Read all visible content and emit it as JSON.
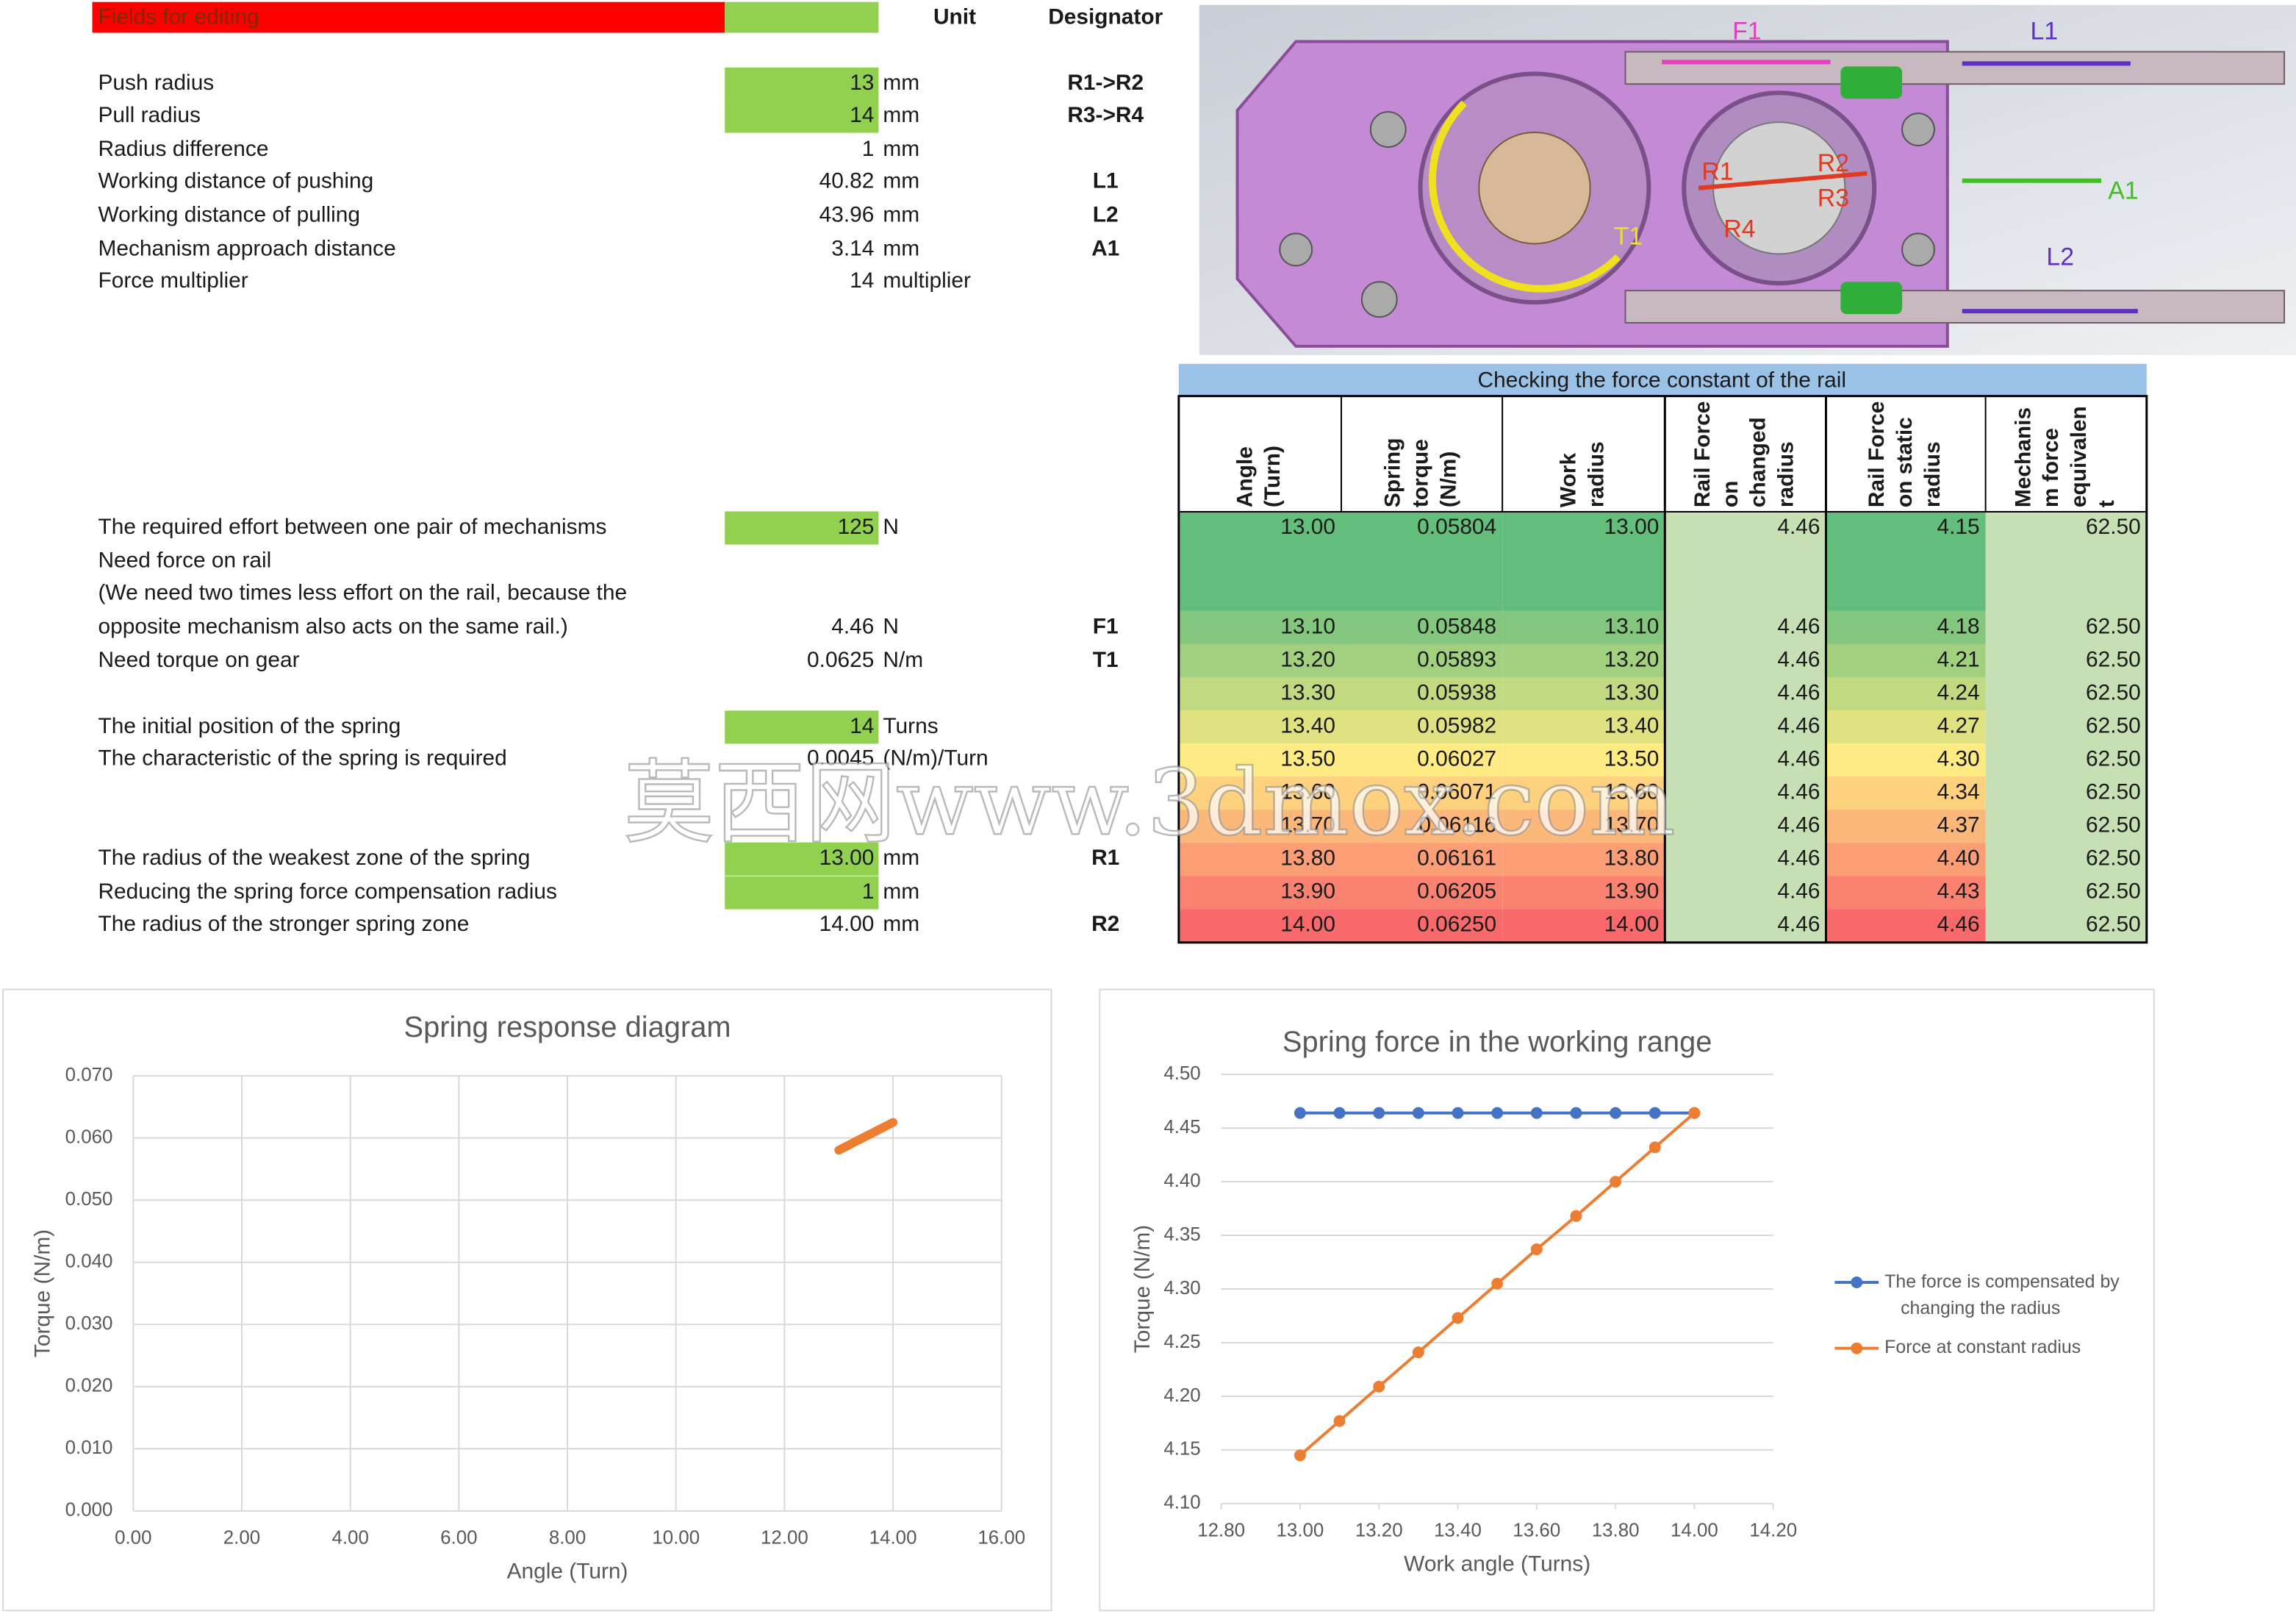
{
  "header": {
    "title": "Fields for editing",
    "unit": "Unit",
    "designator": "Designator"
  },
  "params": [
    {
      "label": "Push radius",
      "value": "13",
      "unit": "mm",
      "designator": "R1->R2",
      "fill": "#92d050"
    },
    {
      "label": "Pull radius",
      "value": "14",
      "unit": "mm",
      "designator": "R3->R4",
      "fill": "#92d050"
    },
    {
      "label": "Radius difference",
      "value": "1",
      "unit": "mm"
    },
    {
      "label": "Working distance of pushing",
      "value": "40.82",
      "unit": "mm",
      "designator": "L1"
    },
    {
      "label": "Working distance of pulling",
      "value": "43.96",
      "unit": "mm",
      "designator": "L2"
    },
    {
      "label": "Mechanism approach distance",
      "value": "3.14",
      "unit": "mm",
      "designator": "A1"
    },
    {
      "label": "Force multiplier",
      "value": "14",
      "unit": "multiplier"
    },
    {
      "label": "The required effort between one pair of mechanisms",
      "value": "125",
      "unit": "N",
      "fill": "#92d050"
    },
    {
      "label": "Need force on rail"
    },
    {
      "label": "(We need two times less effort on the rail, because the"
    },
    {
      "label": "opposite mechanism also acts on the same rail.)",
      "value": "4.46",
      "unit": "N",
      "designator": "F1"
    },
    {
      "label": "Need torque on gear",
      "value": "0.0625",
      "unit": "N/m",
      "designator": "T1"
    },
    {
      "label": "The initial position of the spring",
      "value": "14",
      "unit": "Turns",
      "fill": "#92d050"
    },
    {
      "label": "The characteristic of the spring is required",
      "value": "0.0045",
      "unit": "(N/m)/Turn"
    },
    {
      "label": "The radius of the weakest zone of the spring",
      "value": "13.00",
      "unit": "mm",
      "designator": "R1",
      "fill": "#92d050"
    },
    {
      "label": "Reducing the spring force compensation radius",
      "value": "1",
      "unit": "mm",
      "fill": "#92d050"
    },
    {
      "label": "The radius of the stronger spring zone",
      "value": "14.00",
      "unit": "mm",
      "designator": "R2"
    }
  ],
  "image": {
    "labels": [
      "F1",
      "L1",
      "R1",
      "R2",
      "R3",
      "R4",
      "T1",
      "A1",
      "L2"
    ]
  },
  "table": {
    "title": "Checking the force constant of the rail",
    "headers": [
      [
        "Angle",
        "(Turn)"
      ],
      [
        "Spring",
        "torque",
        "(N/m)"
      ],
      [
        "Work",
        "radius"
      ],
      [
        "Rail Force",
        "on",
        "changed",
        "radius"
      ],
      [
        "Rail Force",
        "on static",
        "radius"
      ],
      [
        "Mechanis",
        "m force",
        "equivalen",
        "t"
      ]
    ],
    "rows": [
      [
        "13.00",
        "0.05804",
        "13.00",
        "4.46",
        "4.15",
        "62.50"
      ],
      [
        "13.10",
        "0.05848",
        "13.10",
        "4.46",
        "4.18",
        "62.50"
      ],
      [
        "13.20",
        "0.05893",
        "13.20",
        "4.46",
        "4.21",
        "62.50"
      ],
      [
        "13.30",
        "0.05938",
        "13.30",
        "4.46",
        "4.24",
        "62.50"
      ],
      [
        "13.40",
        "0.05982",
        "13.40",
        "4.46",
        "4.27",
        "62.50"
      ],
      [
        "13.50",
        "0.06027",
        "13.50",
        "4.46",
        "4.30",
        "62.50"
      ],
      [
        "13.60",
        "0.06071",
        "13.60",
        "4.46",
        "4.34",
        "62.50"
      ],
      [
        "13.70",
        "0.06116",
        "13.70",
        "4.46",
        "4.37",
        "62.50"
      ],
      [
        "13.80",
        "0.06161",
        "13.80",
        "4.46",
        "4.40",
        "62.50"
      ],
      [
        "13.90",
        "0.06205",
        "13.90",
        "4.46",
        "4.43",
        "62.50"
      ],
      [
        "14.00",
        "0.06250",
        "14.00",
        "4.46",
        "4.46",
        "62.50"
      ]
    ]
  },
  "watermark": "莫西网www.3dmox.com",
  "chart_data": [
    {
      "type": "line",
      "title": "Spring response diagram",
      "x_label": "Angle (Turn)",
      "y_label": "Torque (N/m)",
      "x": [
        13.0,
        13.1,
        13.2,
        13.3,
        13.4,
        13.5,
        13.6,
        13.7,
        13.8,
        13.9,
        14.0
      ],
      "series": [
        {
          "color": "#ed7d31",
          "values": [
            0.05804,
            0.05848,
            0.05893,
            0.05938,
            0.05982,
            0.06027,
            0.06071,
            0.06116,
            0.06161,
            0.06205,
            0.0625
          ]
        }
      ],
      "xlim": [
        0,
        16
      ],
      "xticks": [
        {
          "value": 0,
          "label": "0.00"
        },
        {
          "value": 2,
          "label": "2.00"
        },
        {
          "value": 4,
          "label": "4.00"
        },
        {
          "value": 6,
          "label": "6.00"
        },
        {
          "value": 8,
          "label": "8.00"
        },
        {
          "value": 10,
          "label": "10.00"
        },
        {
          "value": 12,
          "label": "12.00"
        },
        {
          "value": 14,
          "label": "14.00"
        },
        {
          "value": 16,
          "label": "16.00"
        }
      ],
      "ylim": [
        0,
        0.07
      ],
      "yticks": [
        {
          "value": 0,
          "label": "0.000"
        },
        {
          "value": 0.01,
          "label": "0.010"
        },
        {
          "value": 0.02,
          "label": "0.020"
        },
        {
          "value": 0.03,
          "label": "0.030"
        },
        {
          "value": 0.04,
          "label": "0.040"
        },
        {
          "value": 0.05,
          "label": "0.050"
        },
        {
          "value": 0.06,
          "label": "0.060"
        },
        {
          "value": 0.07,
          "label": "0.070"
        }
      ],
      "grid": "both",
      "markers": false,
      "line_width": 6
    },
    {
      "type": "line",
      "title": "Spring force in the working range",
      "x_label": "Work angle (Turns)",
      "y_label": "Torque (N/m)",
      "x": [
        13.0,
        13.1,
        13.2,
        13.3,
        13.4,
        13.5,
        13.6,
        13.7,
        13.8,
        13.9,
        14.0
      ],
      "series": [
        {
          "name": "The force is compensated by changing the radius",
          "color": "#4472c4",
          "values": [
            4.464,
            4.464,
            4.464,
            4.464,
            4.464,
            4.464,
            4.464,
            4.464,
            4.464,
            4.464,
            4.464
          ]
        },
        {
          "name": "Force at constant radius",
          "color": "#ed7d31",
          "values": [
            4.145,
            4.177,
            4.209,
            4.241,
            4.273,
            4.305,
            4.337,
            4.368,
            4.4,
            4.432,
            4.464
          ]
        }
      ],
      "xlim": [
        12.8,
        14.2
      ],
      "xticks": [
        {
          "value": 12.8,
          "label": "12.80"
        },
        {
          "value": 13,
          "label": "13.00"
        },
        {
          "value": 13.2,
          "label": "13.20"
        },
        {
          "value": 13.4,
          "label": "13.40"
        },
        {
          "value": 13.6,
          "label": "13.60"
        },
        {
          "value": 13.8,
          "label": "13.80"
        },
        {
          "value": 14,
          "label": "14.00"
        },
        {
          "value": 14.2,
          "label": "14.20"
        }
      ],
      "ylim": [
        4.1,
        4.5
      ],
      "yticks": [
        {
          "value": 4.1,
          "label": "4.10"
        },
        {
          "value": 4.15,
          "label": "4.15"
        },
        {
          "value": 4.2,
          "label": "4.20"
        },
        {
          "value": 4.25,
          "label": "4.25"
        },
        {
          "value": 4.3,
          "label": "4.30"
        },
        {
          "value": 4.35,
          "label": "4.35"
        },
        {
          "value": 4.4,
          "label": "4.40"
        },
        {
          "value": 4.45,
          "label": "4.45"
        },
        {
          "value": 4.5,
          "label": "4.50"
        }
      ],
      "grid": "y",
      "markers": true,
      "line_width": 2,
      "legend": "right"
    }
  ]
}
